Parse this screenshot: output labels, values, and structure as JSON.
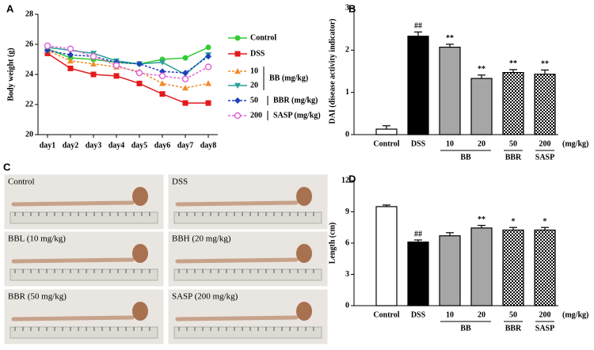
{
  "chart_data": [
    {
      "type": "line",
      "panel": "A",
      "y_label": "Body weight (g)",
      "categories": [
        "day1",
        "day2",
        "day3",
        "day4",
        "day5",
        "day6",
        "day7",
        "day8"
      ],
      "ylim": [
        20,
        28
      ],
      "yticks": [
        20,
        22,
        24,
        26,
        28
      ],
      "series": [
        {
          "name": "Control",
          "color": "#33cc33",
          "marker": "circle",
          "dash": false,
          "values": [
            25.7,
            25.1,
            25.0,
            24.8,
            24.7,
            25.0,
            25.1,
            25.8
          ]
        },
        {
          "name": "DSS",
          "color": "#e31a1c",
          "marker": "square",
          "dash": false,
          "values": [
            25.4,
            24.4,
            24.0,
            23.9,
            23.4,
            22.7,
            22.1,
            22.1
          ]
        },
        {
          "name": "10",
          "color": "#f28c28",
          "marker": "triangle",
          "dash": true,
          "values": [
            25.6,
            24.9,
            24.7,
            24.5,
            24.2,
            23.4,
            23.1,
            23.4
          ]
        },
        {
          "name": "20",
          "color": "#2aa198",
          "marker": "triangle-down",
          "dash": false,
          "values": [
            25.8,
            25.6,
            25.4,
            24.9,
            24.7,
            24.8,
            24.0,
            25.3
          ]
        },
        {
          "name": "50",
          "color": "#1f3fbf",
          "marker": "diamond",
          "dash": true,
          "values": [
            25.6,
            25.3,
            25.2,
            24.8,
            24.7,
            24.2,
            24.1,
            25.2
          ]
        },
        {
          "name": "200",
          "color": "#e066d6",
          "marker": "circle-open",
          "dash": true,
          "values": [
            25.9,
            25.7,
            25.2,
            24.6,
            24.1,
            23.9,
            23.7,
            24.5
          ]
        }
      ],
      "legend_notes": [
        "BB (mg/kg)",
        "BBR (mg/kg)",
        "SASP (mg/kg)"
      ]
    },
    {
      "type": "bar",
      "panel": "B",
      "y_label": "DAI (disease activity indicator)",
      "categories": [
        "Control",
        "DSS",
        "10",
        "20",
        "50",
        "200"
      ],
      "values": [
        0.13,
        2.33,
        2.07,
        1.33,
        1.47,
        1.43
      ],
      "errors": [
        0.08,
        0.1,
        0.07,
        0.08,
        0.07,
        0.1
      ],
      "annotations": [
        null,
        "##",
        "**",
        "**",
        "**",
        "**"
      ],
      "fills": [
        "#ffffff",
        "#000000",
        "#a6a6a6",
        "#a6a6a6",
        "checker",
        "checker"
      ],
      "group_labels": [
        "BB",
        "BBR",
        "SASP"
      ],
      "unit_label": "(mg/kg)",
      "ylim": [
        0,
        3
      ],
      "yticks": [
        0,
        1,
        2,
        3
      ]
    },
    {
      "type": "bar",
      "panel": "D",
      "y_label": "Length (cm)",
      "categories": [
        "Control",
        "DSS",
        "10",
        "20",
        "50",
        "200"
      ],
      "values": [
        9.5,
        6.1,
        6.7,
        7.45,
        7.25,
        7.25
      ],
      "errors": [
        0.15,
        0.2,
        0.3,
        0.25,
        0.25,
        0.25
      ],
      "annotations": [
        null,
        "##",
        null,
        "**",
        "*",
        "*"
      ],
      "fills": [
        "#ffffff",
        "#000000",
        "#a6a6a6",
        "#a6a6a6",
        "checker",
        "checker"
      ],
      "group_labels": [
        "BB",
        "BBR",
        "SASP"
      ],
      "unit_label": "(mg/kg)",
      "ylim": [
        0,
        12
      ],
      "yticks": [
        0,
        3,
        6,
        9,
        12
      ]
    }
  ],
  "photos": {
    "panel": "C",
    "captions": [
      "Control",
      "DSS",
      "BBL (10 mg/kg)",
      "BBH (20 mg/kg)",
      "BBR (50 mg/kg)",
      "SASP (200 mg/kg)"
    ]
  }
}
